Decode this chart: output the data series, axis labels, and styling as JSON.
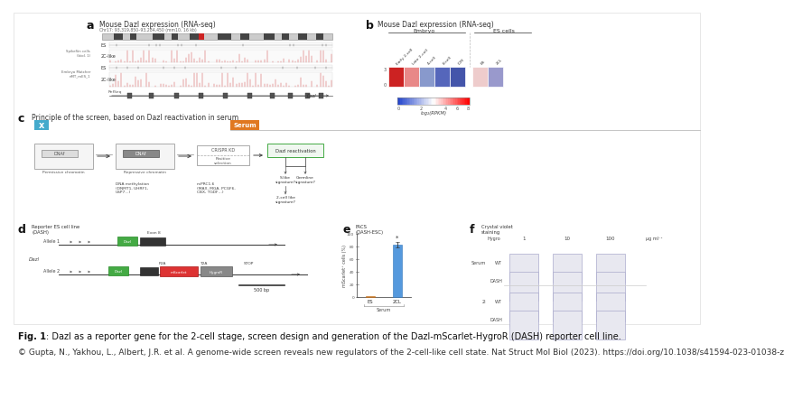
{
  "fig_caption_bold": "Fig. 1",
  "fig_caption_rest": ": Dazl as a reporter gene for the 2-cell stage, screen design and generation of the Dazl-mScarlet-HygroR (DASH) reporter cell line.",
  "copyright_text": "© Gupta, N., Yakhou, L., Albert, J.R. et al. A genome-wide screen reveals new regulators of the 2-cell-like cell state. Nat Struct Mol Biol (2023). https://doi.org/10.1038/s41594-023-01038-z",
  "bg_color": "#ffffff",
  "genome_track_color": "#cc2222",
  "hm_colors": [
    "#cc2222",
    "#e88888",
    "#8899cc",
    "#5566bb",
    "#4455aa",
    "#eecccc",
    "#9999cc"
  ],
  "bar_color_blue": "#5599dd",
  "bar_color_orange": "#dd8833",
  "serum_box_color": "#e07820",
  "x_box_color": "#44aacc",
  "well_color_wt": "#c8c0dc",
  "well_color_dash": "#9090c8",
  "panel_a_title": "Mouse Dazl expression (RNA-seq)",
  "panel_a_subtitle": "Chr17: 93,319,850–93,284,450 (mm10, 16 kb)",
  "panel_b_title": "Mouse Dazl expression (RNA-seq)",
  "panel_b_embryo": "Embryo",
  "panel_b_es": "ES cells",
  "panel_b_col_labels": [
    "Early 2-cell",
    "Late 2-cell",
    "4-cell",
    "8-cell",
    "ICM",
    "ES",
    "2CL"
  ],
  "panel_c_title": "Principle of the screen, based on Dazl reactivation in serum",
  "panel_d_title": "Reporter ES cell line\n(DASH)",
  "panel_e_title": "FACS\n(DASH-ESC)",
  "panel_f_title": "Crystal violet\nstaining",
  "fig_caption_fontsize": 7.0,
  "copyright_fontsize": 6.5,
  "panel_label_fontsize": 9,
  "title_fontsize": 5.5,
  "small_fontsize": 4.5,
  "tiny_fontsize": 3.8
}
